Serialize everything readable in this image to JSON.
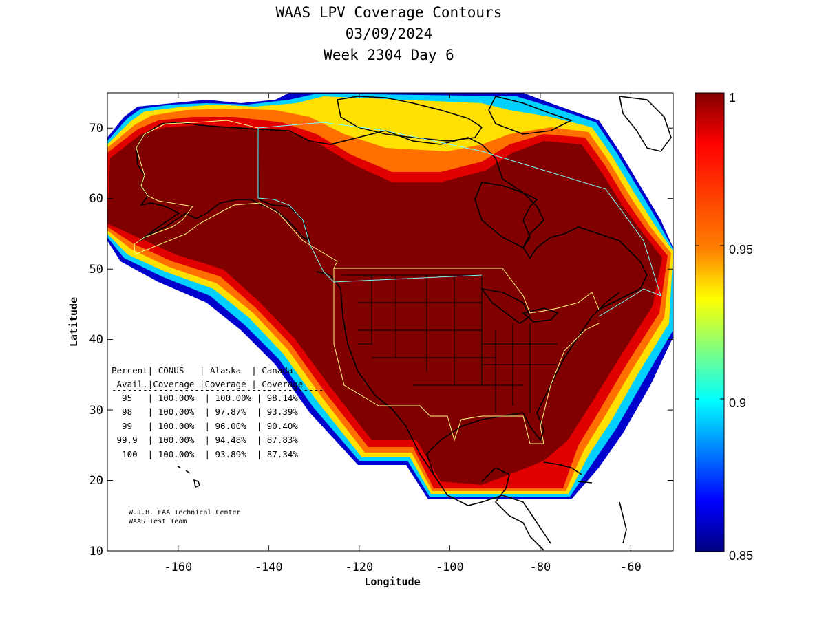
{
  "title": {
    "line1": "WAAS LPV Coverage Contours",
    "line2": "03/09/2024",
    "line3": "Week 2304 Day 6"
  },
  "axes": {
    "xlabel": "Longitude",
    "ylabel": "Latitude",
    "xlim": [
      -175,
      -50
    ],
    "ylim": [
      10,
      75
    ],
    "xticks": [
      "-160",
      "-140",
      "-120",
      "-100",
      "-80",
      "-60"
    ],
    "yticks": [
      "70",
      "60",
      "50",
      "40",
      "30",
      "20",
      "10"
    ]
  },
  "colorbar": {
    "range": [
      0.85,
      1
    ],
    "ticks": [
      "1",
      "0.95",
      "0.9",
      "0.85"
    ],
    "colors": [
      "#800000",
      "#ff0000",
      "#ff8000",
      "#ffff00",
      "#80ff80",
      "#00ffff",
      "#0080ff",
      "#0000ff",
      "#000080"
    ]
  },
  "table": {
    "header1": "Percent| CONUS   | Alaska  | Canada",
    "header2": " Avail.|Coverage |Coverage | Coverage",
    "rule": "-----------------------------------------",
    "rows": [
      "  95   | 100.00%  | 100.00% | 98.14%",
      "  98   | 100.00%  | 97.87%  | 93.39%",
      "  99   | 100.00%  | 96.00%  | 90.40%",
      " 99.9  | 100.00%  | 94.48%  | 87.83%",
      "  100  | 100.00%  | 93.89%  | 87.34%"
    ]
  },
  "credit": {
    "line1": "W.J.H. FAA Technical Center",
    "line2": "WAAS Test Team"
  }
}
